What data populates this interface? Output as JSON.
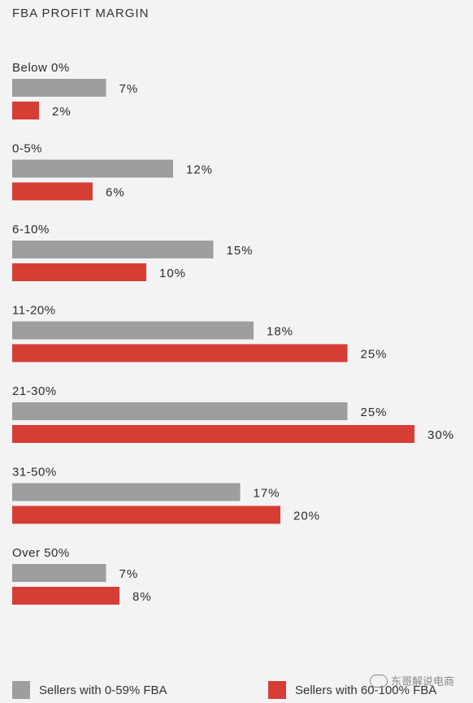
{
  "colors": {
    "series_a": "#9e9d9f",
    "series_b": "#d63d35",
    "text": "#2b2b2b"
  },
  "watermark": {
    "text": "东哥解说电商",
    "icon": "wechat-icon"
  },
  "chart_data": {
    "type": "bar",
    "orientation": "horizontal",
    "title": "FBA PROFIT MARGIN",
    "categories": [
      "Below 0%",
      "0-5%",
      "6-10%",
      "11-20%",
      "21-30%",
      "31-50%",
      "Over 50%"
    ],
    "series": [
      {
        "name": "Sellers with 0-59% FBA",
        "values": [
          7,
          12,
          15,
          18,
          25,
          17,
          7
        ]
      },
      {
        "name": "Sellers with 60-100% FBA",
        "values": [
          2,
          6,
          10,
          25,
          30,
          20,
          8
        ]
      }
    ],
    "value_suffix": "%",
    "xlim": [
      0,
      30
    ],
    "grid": false,
    "legend_position": "bottom"
  }
}
